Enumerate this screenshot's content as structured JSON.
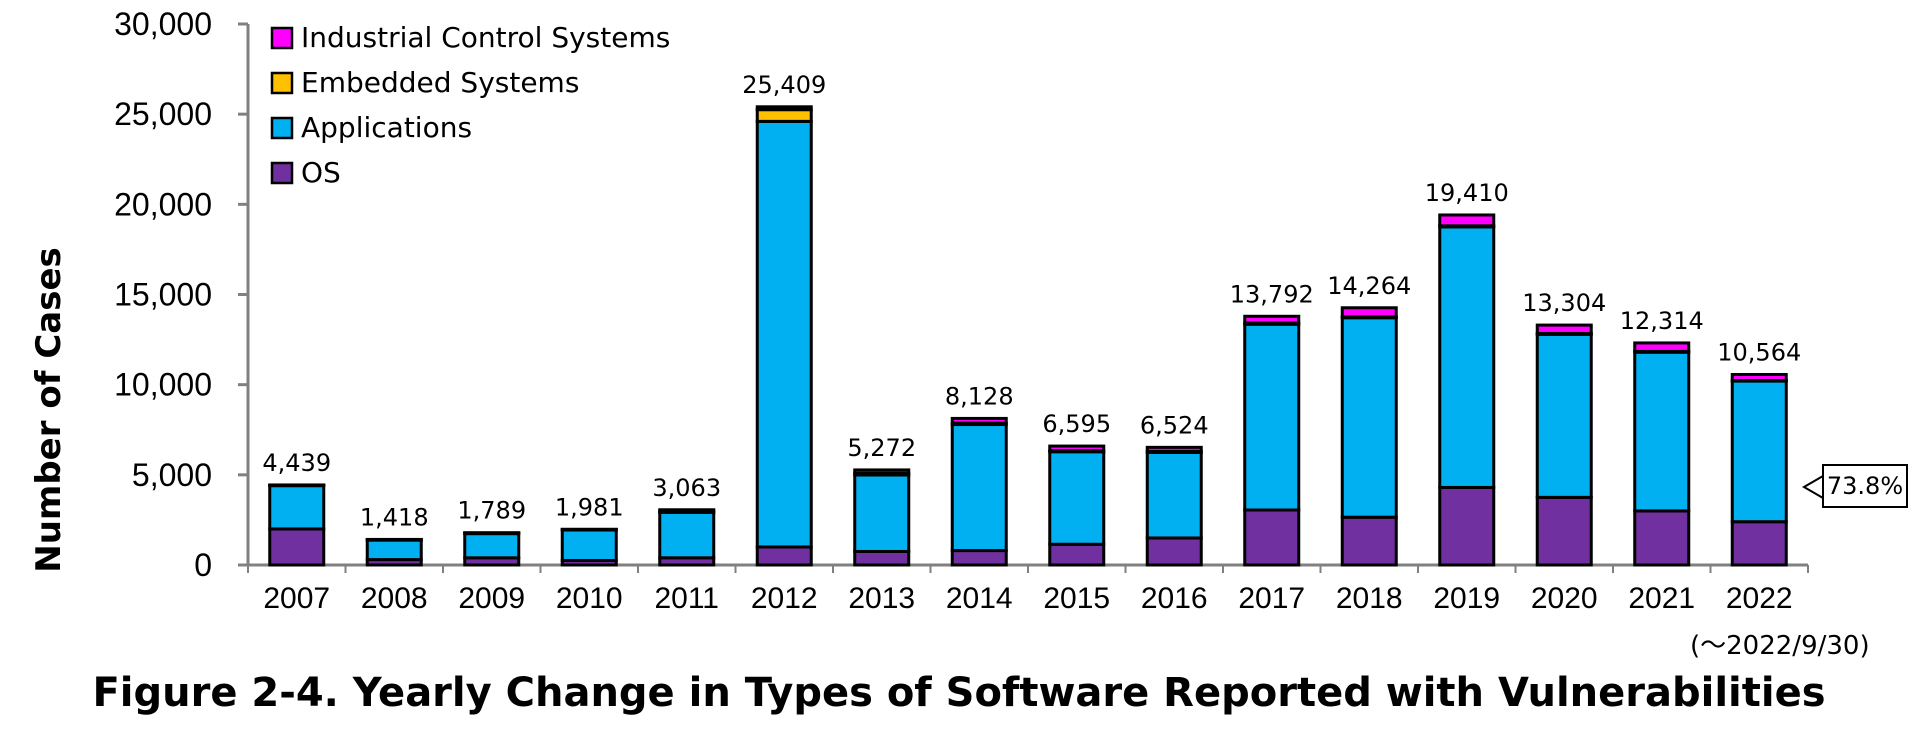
{
  "chart_data": {
    "type": "bar",
    "stacked": true,
    "title": "Figure 2-4. Yearly Change in Types of Software Reported with Vulnerabilities",
    "ylabel": "Number of Cases",
    "xlabel": "",
    "ylim": [
      0,
      30000
    ],
    "yticks": [
      0,
      5000,
      10000,
      15000,
      20000,
      25000,
      30000
    ],
    "ytick_labels": [
      "0",
      "5,000",
      "10,000",
      "15,000",
      "20,000",
      "25,000",
      "30,000"
    ],
    "categories": [
      "2007",
      "2008",
      "2009",
      "2010",
      "2011",
      "2012",
      "2013",
      "2014",
      "2015",
      "2016",
      "2017",
      "2018",
      "2019",
      "2020",
      "2021",
      "2022"
    ],
    "series": [
      {
        "name": "OS",
        "color": "#7030A0",
        "values": [
          2000,
          300,
          400,
          250,
          400,
          1000,
          750,
          800,
          1150,
          1500,
          3050,
          2650,
          4300,
          3750,
          3000,
          2400
        ]
      },
      {
        "name": "Applications",
        "color": "#00B0F0",
        "values": [
          2400,
          1080,
          1340,
          1690,
          2520,
          23600,
          4240,
          6990,
          5130,
          4740,
          10300,
          11060,
          14450,
          9040,
          8800,
          7800
        ]
      },
      {
        "name": "Embedded Systems",
        "color": "#FFC000",
        "values": [
          30,
          30,
          40,
          30,
          60,
          650,
          100,
          80,
          60,
          60,
          70,
          50,
          60,
          50,
          44,
          30
        ]
      },
      {
        "name": "Industrial Control Systems",
        "color": "#FF00FF",
        "values": [
          9,
          8,
          9,
          11,
          83,
          159,
          182,
          258,
          255,
          224,
          372,
          504,
          600,
          464,
          470,
          334
        ]
      }
    ],
    "totals": [
      4439,
      1418,
      1789,
      1981,
      3063,
      25409,
      5272,
      8128,
      6595,
      6524,
      13792,
      14264,
      19410,
      13304,
      12314,
      10564
    ],
    "total_labels": [
      "4,439",
      "1,418",
      "1,789",
      "1,981",
      "3,063",
      "25,409",
      "5,272",
      "8,128",
      "6,595",
      "6,524",
      "13,792",
      "14,264",
      "19,410",
      "13,304",
      "12,314",
      "10,564"
    ],
    "legend_order": [
      "Industrial Control Systems",
      "Embedded Systems",
      "Applications",
      "OS"
    ],
    "legend_position": "top-left",
    "grid": false,
    "annotations": {
      "date_note": "(～2022/9/30)",
      "callout": "73.8%"
    }
  }
}
